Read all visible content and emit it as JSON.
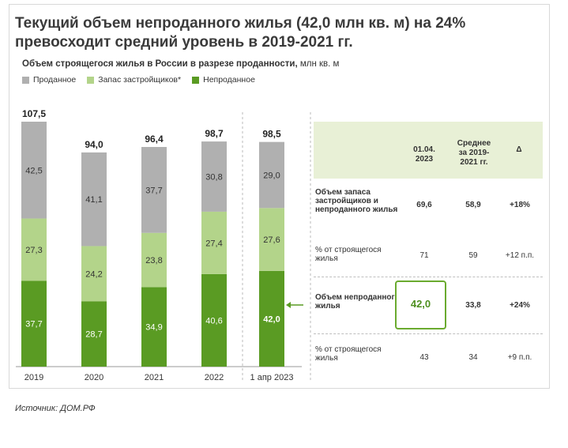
{
  "title": "Текущий объем непроданного жилья (42,0 млн кв. м) на 24% превосходит средний уровень в 2019-2021 гг.",
  "subtitle": "Объем строящегося жилья в России в разрезе проданности,",
  "subtitle_unit": "млн кв. м",
  "source": "Источник: ДОМ.РФ",
  "colors": {
    "sold": "#b0b0b0",
    "stock": "#b3d48a",
    "unsold": "#5a9b23",
    "highlight": "#6aaa2f"
  },
  "chart_data": {
    "type": "bar",
    "stacked": true,
    "categories": [
      "2019",
      "2020",
      "2021",
      "2022",
      "1 апр 2023"
    ],
    "series": [
      {
        "name": "Непроданное",
        "values": [
          37.7,
          28.7,
          34.9,
          40.6,
          42.0
        ],
        "labels": [
          "37,7",
          "28,7",
          "34,9",
          "40,6",
          "42,0"
        ]
      },
      {
        "name": "Запас застройщиков*",
        "values": [
          27.3,
          24.2,
          23.8,
          27.4,
          27.6
        ],
        "labels": [
          "27,3",
          "24,2",
          "23,8",
          "27,4",
          "27,6"
        ]
      },
      {
        "name": "Проданное",
        "values": [
          42.5,
          41.1,
          37.7,
          30.8,
          29.0
        ],
        "labels": [
          "42,5",
          "41,1",
          "37,7",
          "30,8",
          "29,0"
        ]
      }
    ],
    "totals": [
      "107,5",
      "94,0",
      "96,4",
      "98,7",
      "98,5"
    ],
    "legend": [
      "Проданное",
      "Запас застройщиков*",
      "Непроданное"
    ],
    "ylim": [
      0,
      107.5
    ]
  },
  "table": {
    "headers": [
      "01.04.\n2023",
      "Среднее\nза 2019-\n2021 гг.",
      "Δ"
    ],
    "rows": [
      {
        "label": "Объем запаса застройщиков и непроданного жилья",
        "values": [
          "69,6",
          "58,9",
          "+18%"
        ]
      },
      {
        "label": "% от строящегося жилья",
        "values": [
          "71",
          "59",
          "+12 п.п."
        ]
      },
      {
        "label": "Объем непроданного жилья",
        "values": [
          "42,0",
          "33,8",
          "+24%"
        ]
      },
      {
        "label": "% от строящегося жилья",
        "values": [
          "43",
          "34",
          "+9 п.п."
        ]
      }
    ]
  }
}
